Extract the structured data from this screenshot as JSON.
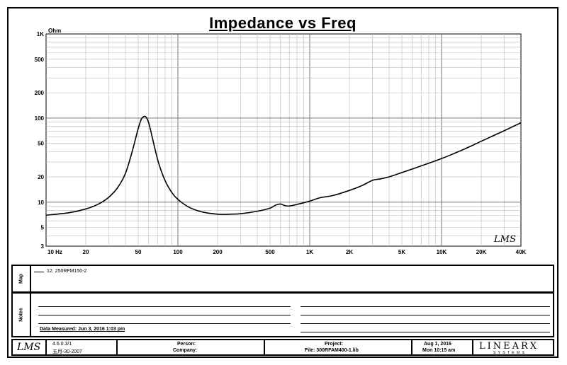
{
  "chart_data": {
    "type": "line",
    "title": "Impedance vs Freq",
    "ylabel": "Ohm",
    "xscale": "log",
    "yscale": "log",
    "xlim": [
      10,
      40000
    ],
    "ylim": [
      3,
      1000
    ],
    "x_ticks": [
      {
        "v": 10,
        "label": "10  Hz"
      },
      {
        "v": 20,
        "label": "20"
      },
      {
        "v": 50,
        "label": "50"
      },
      {
        "v": 100,
        "label": "100"
      },
      {
        "v": 200,
        "label": "200"
      },
      {
        "v": 500,
        "label": "500"
      },
      {
        "v": 1000,
        "label": "1K"
      },
      {
        "v": 2000,
        "label": "2K"
      },
      {
        "v": 5000,
        "label": "5K"
      },
      {
        "v": 10000,
        "label": "10K"
      },
      {
        "v": 20000,
        "label": "20K"
      },
      {
        "v": 40000,
        "label": "40K"
      }
    ],
    "y_ticks": [
      {
        "v": 1000,
        "label": "1K"
      },
      {
        "v": 500,
        "label": "500"
      },
      {
        "v": 200,
        "label": "200"
      },
      {
        "v": 100,
        "label": "100"
      },
      {
        "v": 50,
        "label": "50"
      },
      {
        "v": 20,
        "label": "20"
      },
      {
        "v": 10,
        "label": "10"
      },
      {
        "v": 5,
        "label": "5"
      },
      {
        "v": 3,
        "label": "3"
      }
    ],
    "grid": true,
    "series": [
      {
        "name": "12. 250RFM150-2",
        "color": "#000000",
        "x": [
          10,
          15,
          20,
          25,
          30,
          35,
          40,
          45,
          50,
          53,
          56,
          58,
          60,
          63,
          67,
          72,
          80,
          90,
          100,
          120,
          150,
          200,
          250,
          300,
          400,
          500,
          550,
          600,
          650,
          700,
          800,
          1000,
          1200,
          1500,
          2000,
          2500,
          3000,
          3500,
          4000,
          5000,
          7000,
          10000,
          15000,
          20000,
          30000,
          40000
        ],
        "y": [
          7,
          7.5,
          8.3,
          9.5,
          11.5,
          15,
          22,
          40,
          75,
          98,
          105,
          100,
          88,
          65,
          43,
          28,
          18,
          13,
          10.8,
          8.8,
          7.7,
          7.2,
          7.2,
          7.3,
          7.8,
          8.5,
          9.2,
          9.5,
          9.1,
          9.0,
          9.4,
          10.3,
          11.3,
          12,
          13.8,
          15.8,
          18.2,
          19,
          20,
          22.5,
          27,
          33,
          43,
          53,
          71,
          88
        ]
      }
    ]
  },
  "watermark": "LMS",
  "map_panel": {
    "label": "Map",
    "entry": "12. 250RFM150-2"
  },
  "notes_panel": {
    "label": "Notes",
    "measured": "Data Measured: Jun  3, 2016  1:03 pm"
  },
  "footer": {
    "logo": "LMS",
    "version": "4.6.0.3/1",
    "version_date": "五月-30-2007",
    "person": "Person:",
    "company": "Company:",
    "project": "Project:",
    "file": "File: 300RFAM400-1.lib",
    "date": "Aug  1, 2016",
    "time": "Mon 10:15 am",
    "brand": "LINEARX",
    "brand_sub": "S Y S T E M S"
  }
}
